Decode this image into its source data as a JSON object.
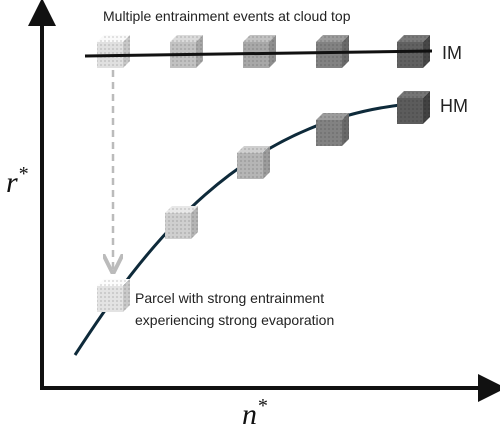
{
  "title": "Multiple entrainment events at cloud top",
  "lines": {
    "im": "IM",
    "hm": "HM"
  },
  "axes": {
    "y": {
      "symbol": "r",
      "superscript": "*"
    },
    "x": {
      "symbol": "n",
      "superscript": "*"
    }
  },
  "annotation": {
    "line1": "Parcel with strong entrainment",
    "line2": "experiencing strong evaporation"
  }
}
